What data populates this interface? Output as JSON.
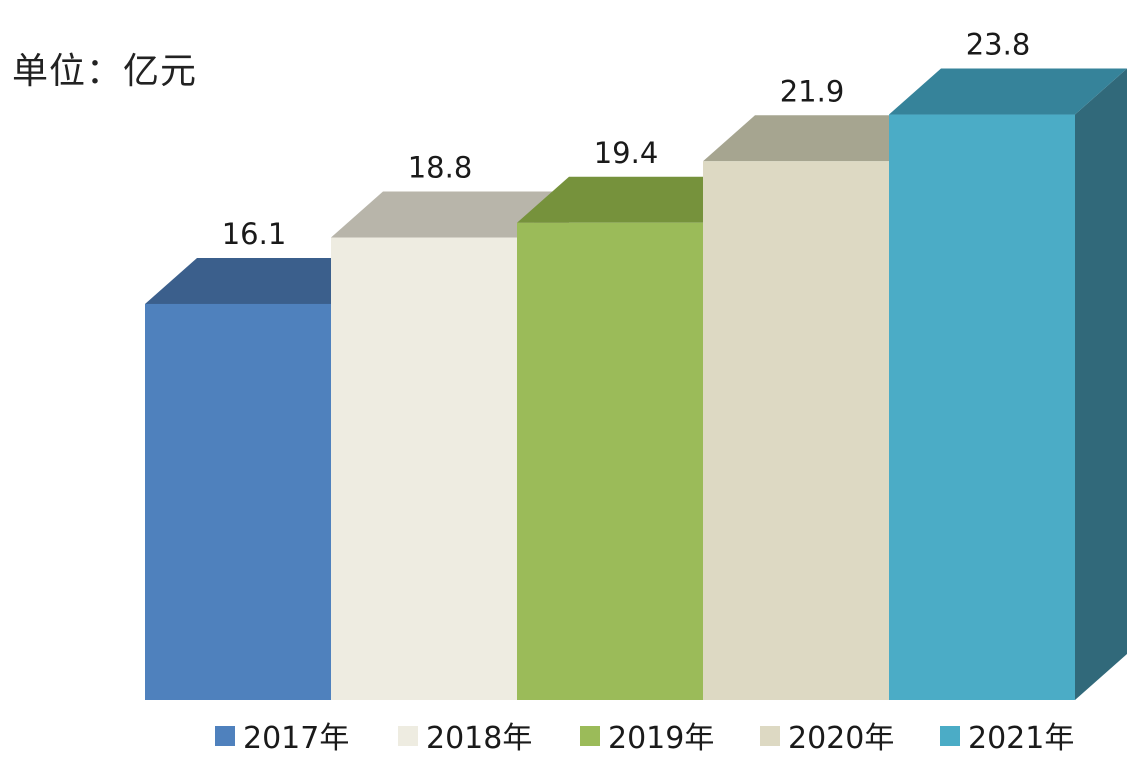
{
  "chart_data": {
    "type": "bar",
    "title": "",
    "unit_label": "单位：亿元",
    "categories": [
      "2017年",
      "2018年",
      "2019年",
      "2020年",
      "2021年"
    ],
    "values": [
      16.1,
      18.8,
      19.4,
      21.9,
      23.8
    ],
    "value_labels": [
      "16.1",
      "18.8",
      "19.4",
      "21.9",
      "23.8"
    ],
    "xlabel": "",
    "ylabel": "",
    "ylim": [
      0,
      23.8
    ],
    "grid": false,
    "legend_placement": "bottom",
    "style": "3d-bar",
    "colors": {
      "front": [
        "#4f81bd",
        "#eeece1",
        "#9bbb59",
        "#ddd9c3",
        "#4bacc6"
      ],
      "top": [
        "#3b5f8c",
        "#b8b5aa",
        "#76923c",
        "#a6a590",
        "#36839a"
      ],
      "side": [
        "#3a5d8a",
        "#a9a79d",
        "#6f8a37",
        "#a5a28e",
        "#31697a"
      ],
      "legend_swatch": [
        "#4f81bd",
        "#eeece1",
        "#9bbb59",
        "#ddd9c3",
        "#4bacc6"
      ]
    }
  }
}
